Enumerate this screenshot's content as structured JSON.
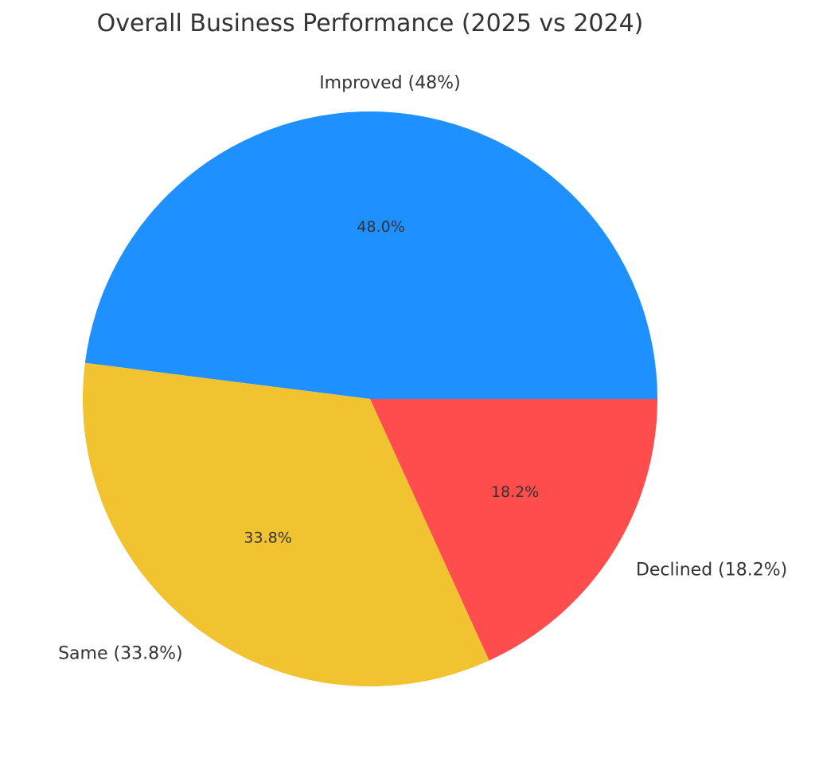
{
  "chart_data": {
    "type": "pie",
    "title": "Overall Business Performance (2025 vs 2024)",
    "start_angle_deg": 0,
    "direction": "counterclockwise",
    "slices": [
      {
        "label": "Improved (48%)",
        "value": 48.0,
        "pct_label": "48.0%",
        "color": "#1E90FF"
      },
      {
        "label": "Same (33.8%)",
        "value": 33.8,
        "pct_label": "33.8%",
        "color": "#F2C330"
      },
      {
        "label": "Declined (18.2%)",
        "value": 18.2,
        "pct_label": "18.2%",
        "color": "#FF4D4D"
      }
    ]
  }
}
